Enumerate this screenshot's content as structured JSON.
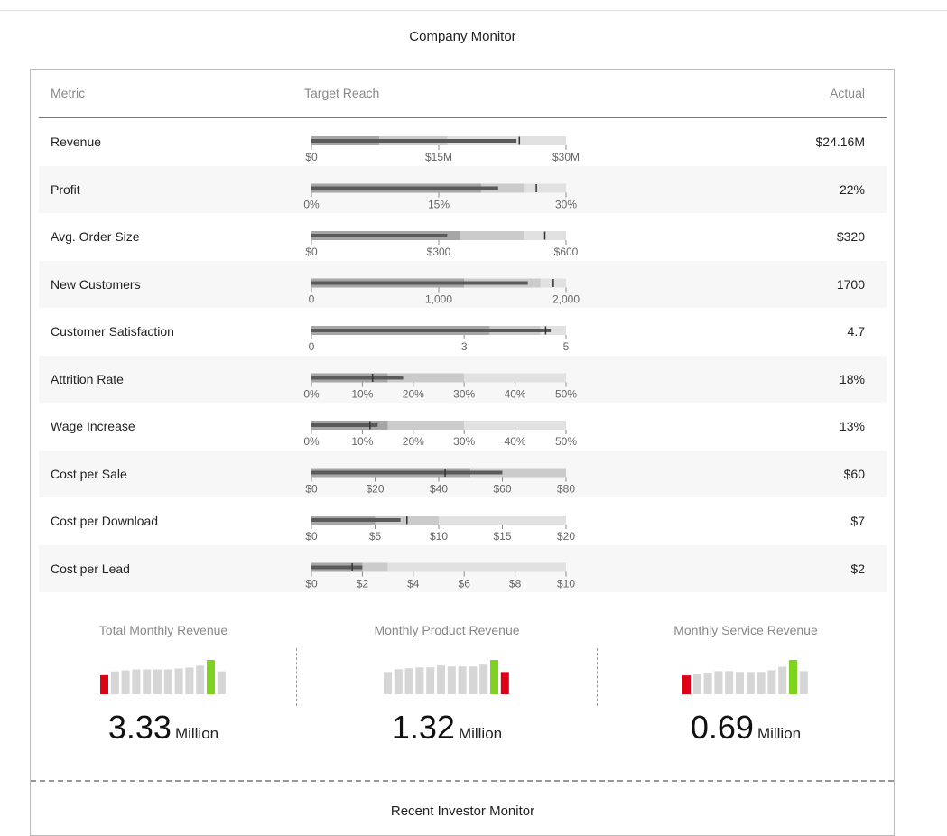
{
  "page": {
    "title": "Company Monitor",
    "section2_title": "Recent Investor Monitor"
  },
  "table": {
    "headers": {
      "metric": "Metric",
      "target": "Target Reach",
      "actual": "Actual"
    }
  },
  "chart_data": [
    {
      "type": "bullet",
      "rows": [
        {
          "metric": "Revenue",
          "actual_label": "$24.16M",
          "max": 30,
          "ranges": [
            8,
            16,
            30
          ],
          "value": 24.16,
          "target": 24.5,
          "ticks": [
            {
              "v": 0,
              "label": "$0"
            },
            {
              "v": 15,
              "label": "$15M"
            },
            {
              "v": 30,
              "label": "$30M"
            }
          ]
        },
        {
          "metric": "Profit",
          "actual_label": "22%",
          "max": 30,
          "ranges": [
            20,
            25,
            30
          ],
          "value": 22,
          "target": 26.5,
          "ticks": [
            {
              "v": 0,
              "label": "0%"
            },
            {
              "v": 15,
              "label": "15%"
            },
            {
              "v": 30,
              "label": "30%"
            }
          ]
        },
        {
          "metric": "Avg. Order Size",
          "actual_label": "$320",
          "max": 600,
          "ranges": [
            350,
            500,
            600
          ],
          "value": 320,
          "target": 550,
          "ticks": [
            {
              "v": 0,
              "label": "$0"
            },
            {
              "v": 300,
              "label": "$300"
            },
            {
              "v": 600,
              "label": "$600"
            }
          ]
        },
        {
          "metric": "New Customers",
          "actual_label": "1700",
          "max": 2000,
          "ranges": [
            1200,
            1800,
            2000
          ],
          "value": 1700,
          "target": 1900,
          "ticks": [
            {
              "v": 0,
              "label": "0"
            },
            {
              "v": 1000,
              "label": "1,000"
            },
            {
              "v": 2000,
              "label": "2,000"
            }
          ]
        },
        {
          "metric": "Customer Satisfaction",
          "actual_label": "4.7",
          "max": 5,
          "ranges": [
            3.5,
            4.5,
            5
          ],
          "value": 4.7,
          "target": 4.6,
          "ticks": [
            {
              "v": 0,
              "label": "0"
            },
            {
              "v": 3,
              "label": "3"
            },
            {
              "v": 5,
              "label": "5"
            }
          ]
        },
        {
          "metric": "Attrition Rate",
          "actual_label": "18%",
          "max": 50,
          "ranges": [
            15,
            30,
            50
          ],
          "value": 18,
          "target": 12,
          "ticks": [
            {
              "v": 0,
              "label": "0%"
            },
            {
              "v": 10,
              "label": "10%"
            },
            {
              "v": 20,
              "label": "20%"
            },
            {
              "v": 30,
              "label": "30%"
            },
            {
              "v": 40,
              "label": "40%"
            },
            {
              "v": 50,
              "label": "50%"
            }
          ]
        },
        {
          "metric": "Wage Increase",
          "actual_label": "13%",
          "max": 50,
          "ranges": [
            15,
            30,
            50
          ],
          "value": 13,
          "target": 11.5,
          "ticks": [
            {
              "v": 0,
              "label": "0%"
            },
            {
              "v": 10,
              "label": "10%"
            },
            {
              "v": 20,
              "label": "20%"
            },
            {
              "v": 30,
              "label": "30%"
            },
            {
              "v": 40,
              "label": "40%"
            },
            {
              "v": 50,
              "label": "50%"
            }
          ]
        },
        {
          "metric": "Cost per Sale",
          "actual_label": "$60",
          "max": 80,
          "ranges": [
            50,
            80
          ],
          "value": 60,
          "target": 42,
          "ticks": [
            {
              "v": 0,
              "label": "$0"
            },
            {
              "v": 20,
              "label": "$20"
            },
            {
              "v": 40,
              "label": "$40"
            },
            {
              "v": 60,
              "label": "$60"
            },
            {
              "v": 80,
              "label": "$80"
            }
          ]
        },
        {
          "metric": "Cost per Download",
          "actual_label": "$7",
          "max": 20,
          "ranges": [
            5,
            10,
            20
          ],
          "value": 7,
          "target": 7.5,
          "ticks": [
            {
              "v": 0,
              "label": "$0"
            },
            {
              "v": 5,
              "label": "$5"
            },
            {
              "v": 10,
              "label": "$10"
            },
            {
              "v": 15,
              "label": "$15"
            },
            {
              "v": 20,
              "label": "$20"
            }
          ]
        },
        {
          "metric": "Cost per Lead",
          "actual_label": "$2",
          "max": 10,
          "ranges": [
            2,
            3,
            10
          ],
          "value": 2,
          "target": 1.6,
          "ticks": [
            {
              "v": 0,
              "label": "$0"
            },
            {
              "v": 2,
              "label": "$2"
            },
            {
              "v": 4,
              "label": "$4"
            },
            {
              "v": 6,
              "label": "$6"
            },
            {
              "v": 8,
              "label": "$8"
            },
            {
              "v": 10,
              "label": "$10"
            }
          ]
        }
      ]
    },
    {
      "type": "bar",
      "name": "Total Monthly Revenue",
      "values": [
        20,
        24,
        25,
        26,
        26,
        26,
        26,
        27,
        28,
        30,
        36,
        24
      ],
      "highlight": {
        "low_index": 0,
        "high_index": 10
      }
    },
    {
      "type": "bar",
      "name": "Monthly Product Revenue",
      "values": [
        24,
        27,
        28,
        29,
        29,
        31,
        30,
        30,
        30,
        32,
        37,
        24
      ],
      "highlight": {
        "low_index": 11,
        "high_index": 10
      }
    },
    {
      "type": "bar",
      "name": "Monthly Service Revenue",
      "values": [
        22,
        23,
        25,
        27,
        27,
        26,
        26,
        26,
        28,
        32,
        40,
        27
      ],
      "highlight": {
        "low_index": 0,
        "high_index": 10
      }
    }
  ],
  "kpis": [
    {
      "title": "Total Monthly Revenue",
      "value": "3.33",
      "unit": "Million"
    },
    {
      "title": "Monthly Product Revenue",
      "value": "1.32",
      "unit": "Million"
    },
    {
      "title": "Monthly Service Revenue",
      "value": "0.69",
      "unit": "Million"
    }
  ],
  "colors": {
    "measure": "#5a5a5a",
    "range_dark": "#a6a6a6",
    "range_mid": "#cbcbcb",
    "range_light": "#e1e1e1",
    "spark_bar": "#d6d6d6",
    "spark_high": "#7ed321",
    "spark_low": "#e00016",
    "stripe": "#f7f7f7"
  }
}
